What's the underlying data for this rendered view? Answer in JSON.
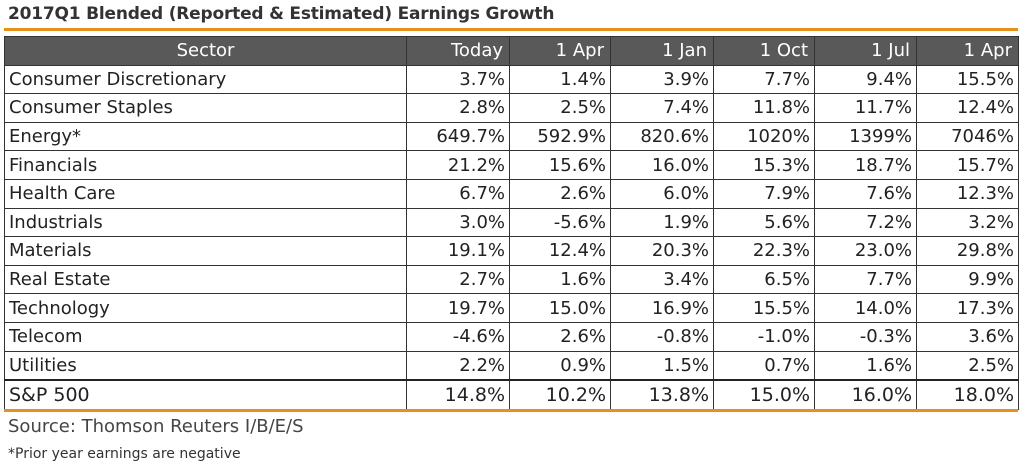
{
  "title": "2017Q1 Blended (Reported & Estimated) Earnings Growth",
  "chart_data": {
    "type": "table",
    "title": "2017Q1 Blended (Reported & Estimated) Earnings Growth",
    "columns": [
      "Sector",
      "Today",
      "1 Apr",
      "1 Jan",
      "1 Oct",
      "1 Jul",
      "1 Apr"
    ],
    "rows": [
      {
        "sector": "Consumer Discretionary",
        "values": [
          "3.7%",
          "1.4%",
          "3.9%",
          "7.7%",
          "9.4%",
          "15.5%"
        ]
      },
      {
        "sector": "Consumer Staples",
        "values": [
          "2.8%",
          "2.5%",
          "7.4%",
          "11.8%",
          "11.7%",
          "12.4%"
        ]
      },
      {
        "sector": "Energy*",
        "values": [
          "649.7%",
          "592.9%",
          "820.6%",
          "1020%",
          "1399%",
          "7046%"
        ]
      },
      {
        "sector": "Financials",
        "values": [
          "21.2%",
          "15.6%",
          "16.0%",
          "15.3%",
          "18.7%",
          "15.7%"
        ]
      },
      {
        "sector": "Health Care",
        "values": [
          "6.7%",
          "2.6%",
          "6.0%",
          "7.9%",
          "7.6%",
          "12.3%"
        ]
      },
      {
        "sector": "Industrials",
        "values": [
          "3.0%",
          "-5.6%",
          "1.9%",
          "5.6%",
          "7.2%",
          "3.2%"
        ]
      },
      {
        "sector": "Materials",
        "values": [
          "19.1%",
          "12.4%",
          "20.3%",
          "22.3%",
          "23.0%",
          "29.8%"
        ]
      },
      {
        "sector": "Real Estate",
        "values": [
          "2.7%",
          "1.6%",
          "3.4%",
          "6.5%",
          "7.7%",
          "9.9%"
        ]
      },
      {
        "sector": "Technology",
        "values": [
          "19.7%",
          "15.0%",
          "16.9%",
          "15.5%",
          "14.0%",
          "17.3%"
        ]
      },
      {
        "sector": "Telecom",
        "values": [
          "-4.6%",
          "2.6%",
          "-0.8%",
          "-1.0%",
          "-0.3%",
          "3.6%"
        ]
      },
      {
        "sector": "Utilities",
        "values": [
          "2.2%",
          "0.9%",
          "1.5%",
          "0.7%",
          "1.6%",
          "2.5%"
        ]
      }
    ],
    "total": {
      "sector": "S&P 500",
      "values": [
        "14.8%",
        "10.2%",
        "13.8%",
        "15.0%",
        "16.0%",
        "18.0%"
      ]
    }
  },
  "source": "Source: Thomson Reuters I/B/E/S",
  "note": "*Prior year earnings are negative",
  "colors": {
    "accent": "#e8901c",
    "header_bg": "#595959",
    "header_text": "#ffffff"
  }
}
